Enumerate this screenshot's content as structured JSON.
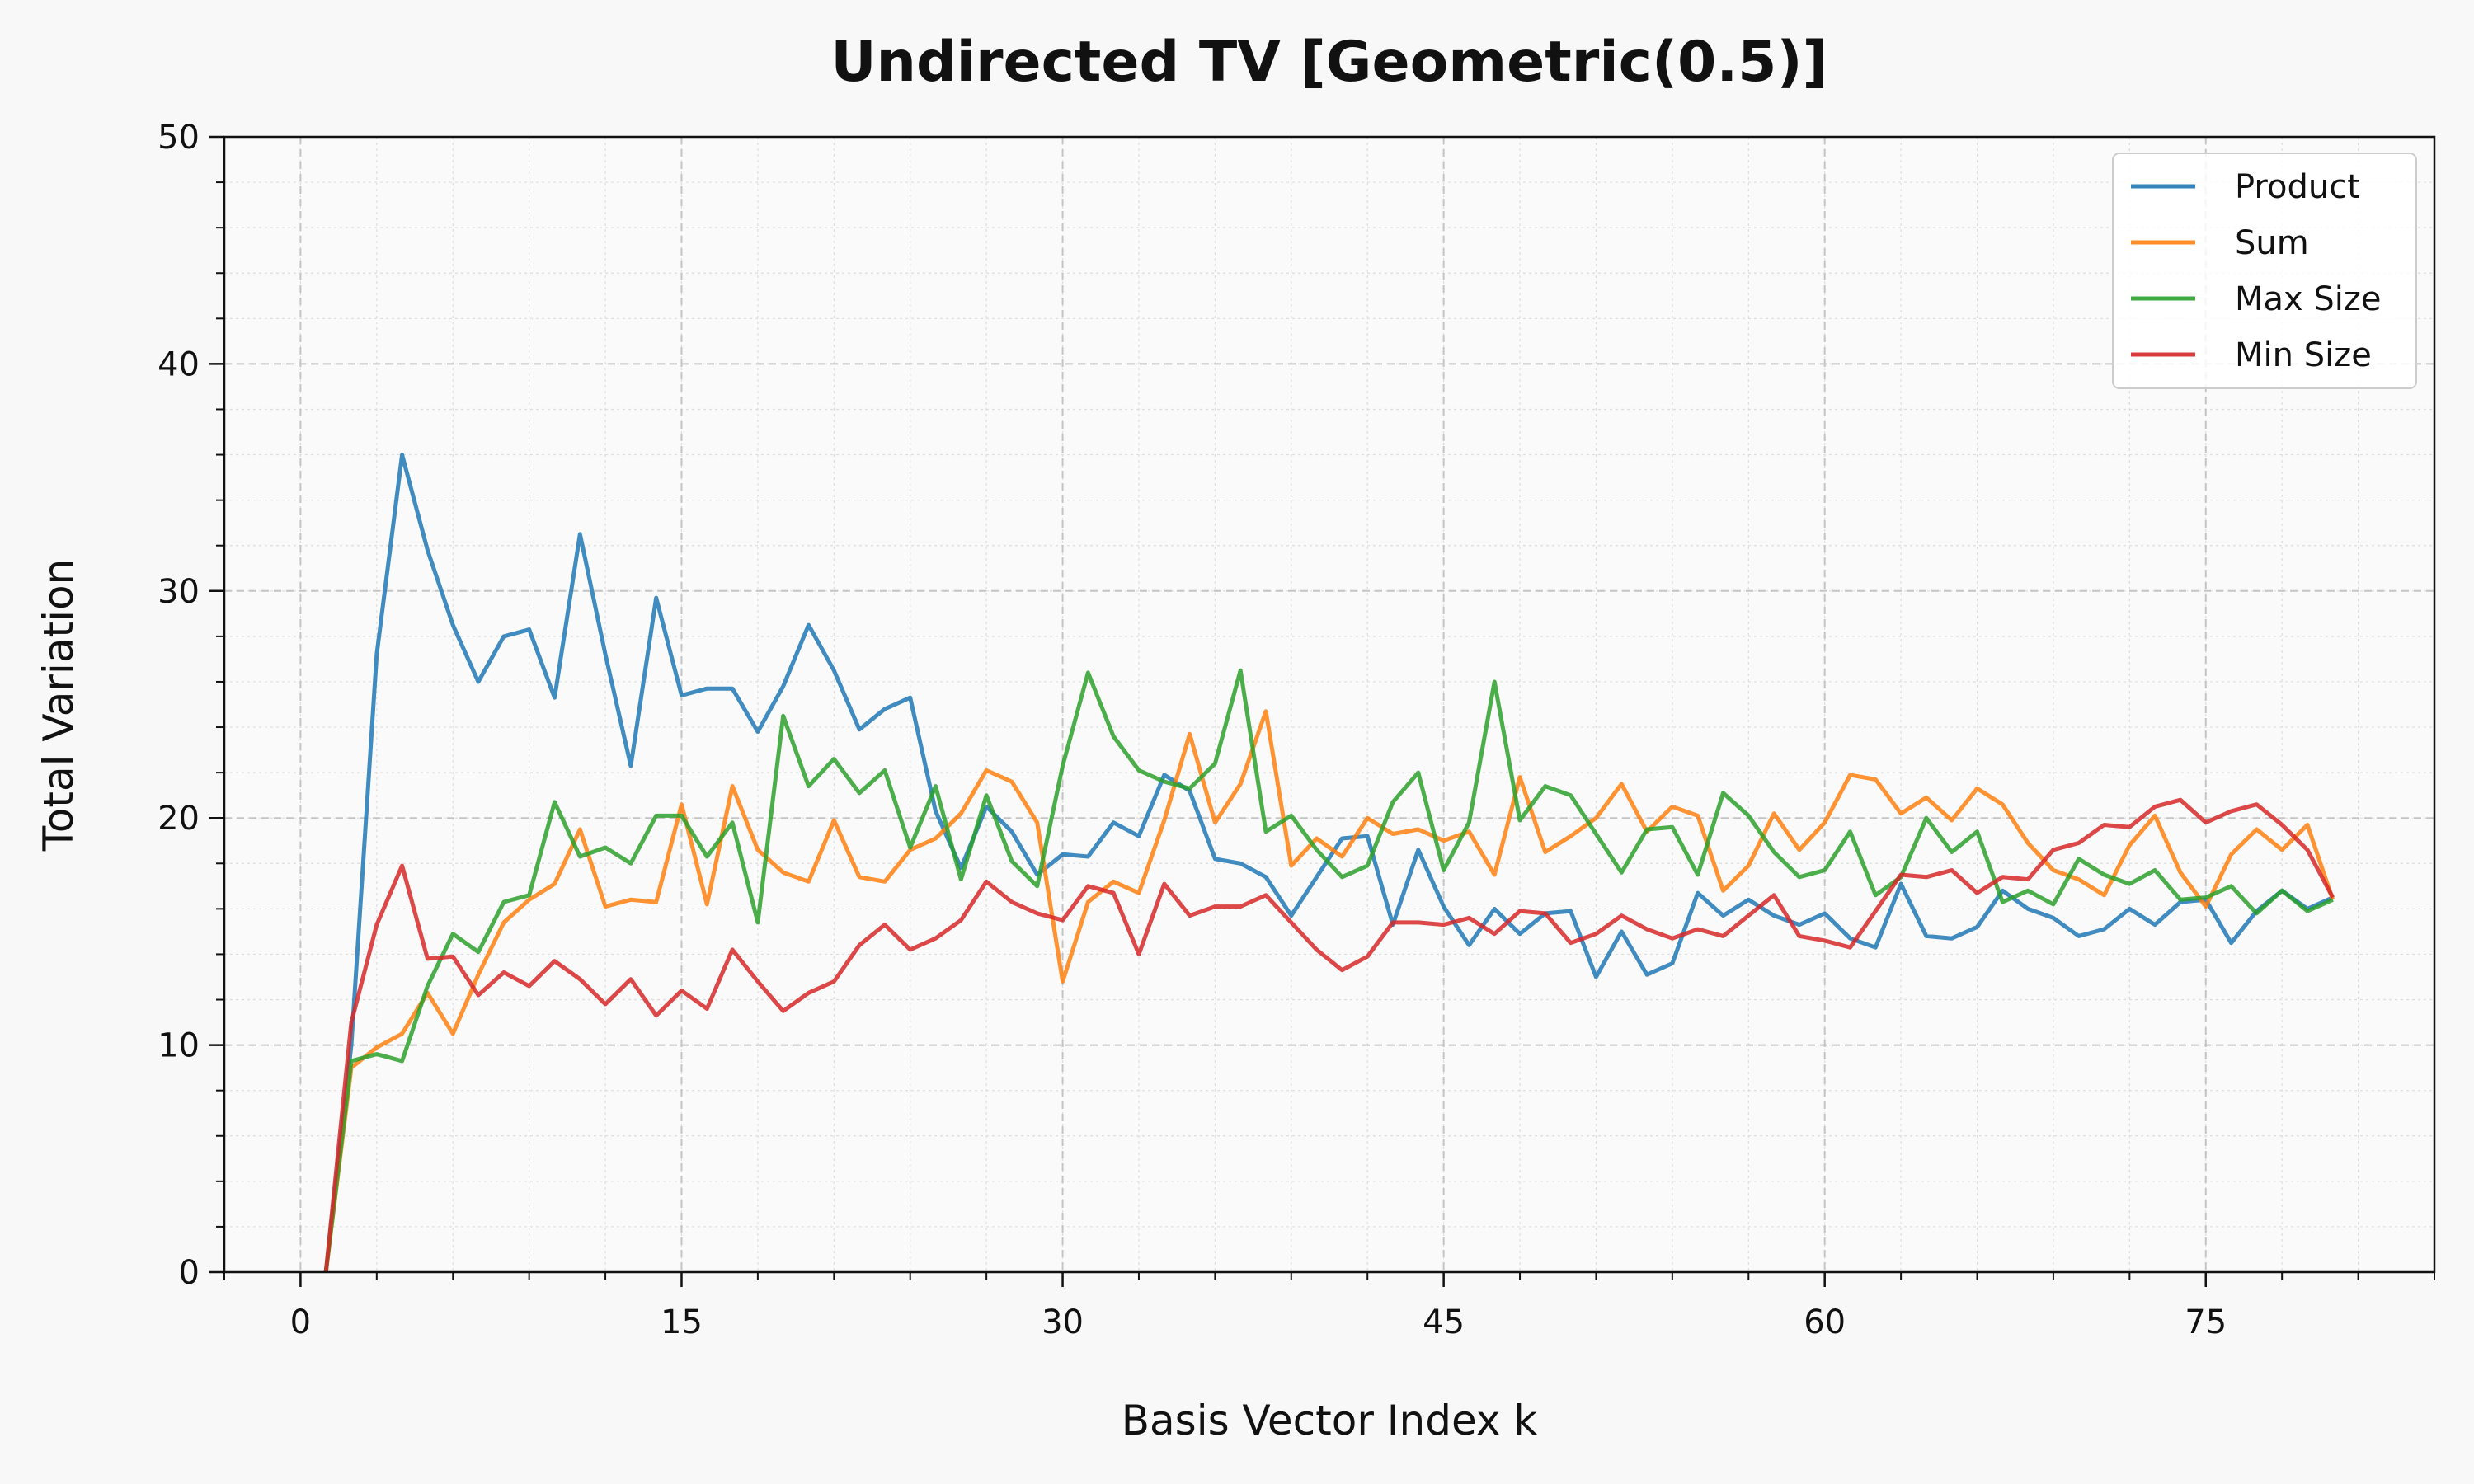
{
  "chart_data": {
    "type": "line",
    "title": "Undirected TV [Geometric(0.5)]",
    "xlabel": "Basis Vector Index k",
    "ylabel": "Total Variation",
    "xlim": [
      -3,
      84
    ],
    "ylim": [
      0,
      50
    ],
    "xticks": [
      0,
      15,
      30,
      45,
      60,
      75
    ],
    "yticks": [
      0,
      10,
      20,
      30,
      40,
      50
    ],
    "grid": true,
    "legend_position": "top-right",
    "x": [
      1,
      2,
      3,
      4,
      5,
      6,
      7,
      8,
      9,
      10,
      11,
      12,
      13,
      14,
      15,
      16,
      17,
      18,
      19,
      20,
      21,
      22,
      23,
      24,
      25,
      26,
      27,
      28,
      29,
      30,
      31,
      32,
      33,
      34,
      35,
      36,
      37,
      38,
      39,
      40,
      41,
      42,
      43,
      44,
      45,
      46,
      47,
      48,
      49,
      50,
      51,
      52,
      53,
      54,
      55,
      56,
      57,
      58,
      59,
      60,
      61,
      62,
      63,
      64,
      65,
      66,
      67,
      68,
      69,
      70,
      71,
      72,
      73,
      74,
      75,
      76,
      77,
      78,
      79,
      80
    ],
    "series": [
      {
        "name": "Product",
        "color": "#1f77b4",
        "values": [
          0,
          10,
          27.2,
          36,
          31.8,
          28.5,
          26,
          28,
          28.3,
          25.3,
          32.5,
          27.2,
          22.3,
          29.7,
          25.4,
          25.7,
          25.7,
          23.8,
          25.8,
          28.5,
          26.5,
          23.9,
          24.8,
          25.3,
          20.3,
          17.8,
          20.5,
          19.4,
          17.5,
          18.4,
          18.3,
          19.8,
          19.2,
          21.9,
          21.2,
          18.2,
          18,
          17.4,
          15.7,
          17.4,
          19.1,
          19.2,
          15.3,
          18.6,
          16.1,
          14.4,
          16,
          14.9,
          15.8,
          15.9,
          13,
          15,
          13.1,
          13.6,
          16.7,
          15.7,
          16.4,
          15.7,
          15.3,
          15.8,
          14.7,
          14.3,
          17.1,
          14.8,
          14.7,
          15.2,
          16.8,
          16,
          15.6,
          14.8,
          15.1,
          16,
          15.3,
          16.3,
          16.4,
          14.5,
          15.9,
          16.8,
          16,
          16.5
        ]
      },
      {
        "name": "Sum",
        "color": "#ff7f0e",
        "values": [
          0,
          9,
          9.9,
          10.5,
          12.3,
          10.5,
          13.1,
          15.4,
          16.4,
          17.1,
          19.5,
          16.1,
          16.4,
          16.3,
          20.6,
          16.2,
          21.4,
          18.6,
          17.6,
          17.2,
          19.9,
          17.4,
          17.2,
          18.6,
          19.1,
          20.2,
          22.1,
          21.6,
          19.8,
          12.8,
          16.3,
          17.2,
          16.7,
          19.9,
          23.7,
          19.8,
          21.5,
          24.7,
          17.9,
          19.1,
          18.3,
          20,
          19.3,
          19.5,
          19,
          19.4,
          17.5,
          21.8,
          18.5,
          19.2,
          20,
          21.5,
          19.4,
          20.5,
          20.1,
          16.8,
          17.9,
          20.2,
          18.6,
          19.8,
          21.9,
          21.7,
          20.2,
          20.9,
          19.9,
          21.3,
          20.6,
          18.9,
          17.7,
          17.3,
          16.6,
          18.8,
          20.1,
          17.6,
          16.1,
          18.4,
          19.5,
          18.6,
          19.7,
          16.4
        ]
      },
      {
        "name": "Max Size",
        "color": "#2ca02c",
        "values": [
          0,
          9.3,
          9.6,
          9.3,
          12.6,
          14.9,
          14.1,
          16.3,
          16.6,
          20.7,
          18.3,
          18.7,
          18,
          20.1,
          20.1,
          18.3,
          19.8,
          15.4,
          24.5,
          21.4,
          22.6,
          21.1,
          22.1,
          18.7,
          21.4,
          17.3,
          21,
          18.1,
          17,
          22.3,
          26.4,
          23.6,
          22.1,
          21.6,
          21.3,
          22.4,
          26.5,
          19.4,
          20.1,
          18.6,
          17.4,
          17.9,
          20.7,
          22,
          17.7,
          19.8,
          26,
          19.9,
          21.4,
          21,
          19.3,
          17.6,
          19.5,
          19.6,
          17.5,
          21.1,
          20.1,
          18.5,
          17.4,
          17.7,
          19.4,
          16.6,
          17.4,
          20,
          18.5,
          19.4,
          16.3,
          16.8,
          16.2,
          18.2,
          17.5,
          17.1,
          17.7,
          16.4,
          16.5,
          17,
          15.8,
          16.8,
          15.9,
          16.4
        ]
      },
      {
        "name": "Min Size",
        "color": "#d62728",
        "values": [
          0,
          11,
          15.3,
          17.9,
          13.8,
          13.9,
          12.2,
          13.2,
          12.6,
          13.7,
          12.9,
          11.8,
          12.9,
          11.3,
          12.4,
          11.6,
          14.2,
          12.8,
          11.5,
          12.3,
          12.8,
          14.4,
          15.3,
          14.2,
          14.7,
          15.5,
          17.2,
          16.3,
          15.8,
          15.5,
          17,
          16.7,
          14,
          17.1,
          15.7,
          16.1,
          16.1,
          16.6,
          15.4,
          14.2,
          13.3,
          13.9,
          15.4,
          15.4,
          15.3,
          15.6,
          14.9,
          15.9,
          15.8,
          14.5,
          14.9,
          15.7,
          15.1,
          14.7,
          15.1,
          14.8,
          15.7,
          16.6,
          14.8,
          14.6,
          14.3,
          15.9,
          17.5,
          17.4,
          17.7,
          16.7,
          17.4,
          17.3,
          18.6,
          18.9,
          19.7,
          19.6,
          20.5,
          20.8,
          19.8,
          20.3,
          20.6,
          19.7,
          18.6,
          16.5
        ]
      }
    ]
  }
}
